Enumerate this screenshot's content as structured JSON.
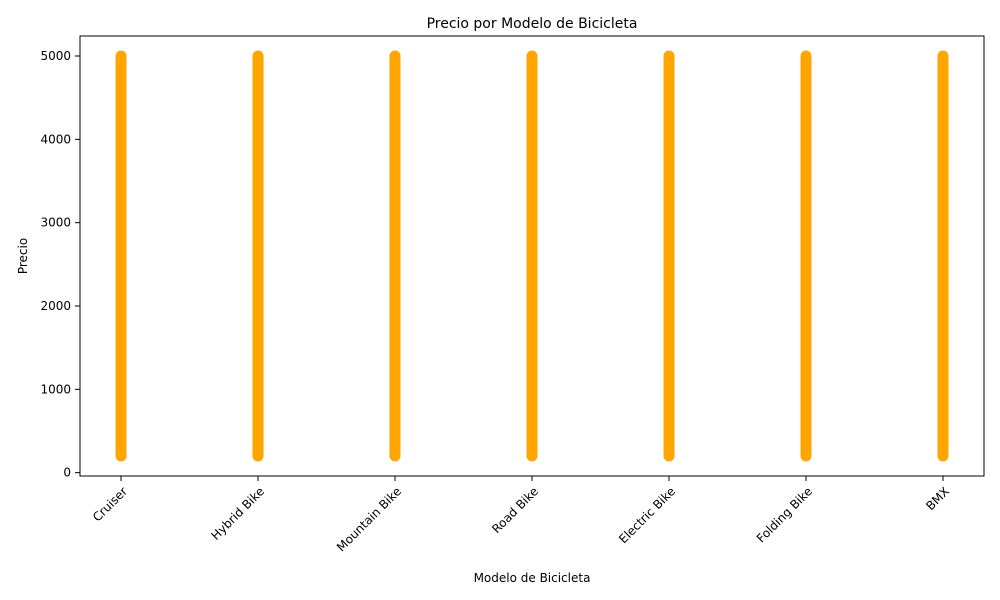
{
  "chart_data": {
    "type": "scatter",
    "title": "Precio por Modelo de Bicicleta",
    "xlabel": "Modelo de Bicicleta",
    "ylabel": "Precio",
    "categories": [
      "Cruiser",
      "Hybrid Bike",
      "Mountain Bike",
      "Road Bike",
      "Electric Bike",
      "Folding Bike",
      "BMX"
    ],
    "series": [
      {
        "color": "#ffa500",
        "points": [
          {
            "category": "Cruiser",
            "min": 200,
            "max": 5000
          },
          {
            "category": "Hybrid Bike",
            "min": 200,
            "max": 5000
          },
          {
            "category": "Mountain Bike",
            "min": 200,
            "max": 5000
          },
          {
            "category": "Road Bike",
            "min": 200,
            "max": 5000
          },
          {
            "category": "Electric Bike",
            "min": 200,
            "max": 5000
          },
          {
            "category": "Folding Bike",
            "min": 200,
            "max": 5000
          },
          {
            "category": "BMX",
            "min": 200,
            "max": 5000
          }
        ]
      }
    ],
    "yticks": [
      0,
      1000,
      2000,
      3000,
      4000,
      5000
    ],
    "ylim": [
      -40,
      5240
    ],
    "grid": false,
    "legend": "none",
    "xtick_rotation": 45
  }
}
